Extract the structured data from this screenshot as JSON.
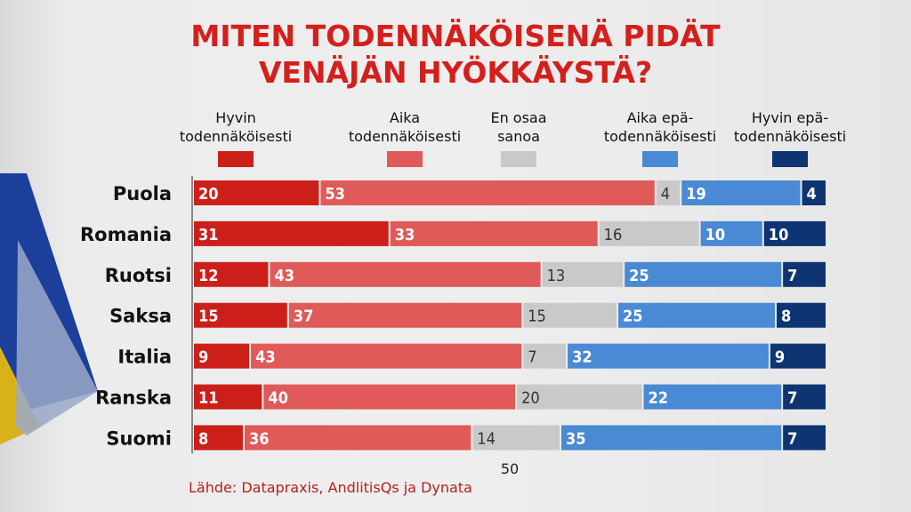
{
  "chart_data": {
    "type": "bar",
    "stacked": true,
    "orientation": "horizontal",
    "title": "MITEN TODENNÄKÖISENÄ PIDÄT VENÄJÄN HYÖKKÄYSTÄ?",
    "title_lines": [
      "MITEN TODENNÄKÖISENÄ PIDÄT",
      "VENÄJÄN HYÖKKÄYSTÄ?"
    ],
    "categories": [
      "Puola",
      "Romania",
      "Ruotsi",
      "Saksa",
      "Italia",
      "Ranska",
      "Suomi"
    ],
    "series": [
      {
        "name": "Hyvin todennäköisesti",
        "label_lines": [
          "Hyvin",
          "todennäköisesti"
        ],
        "color": "#cc1f1a",
        "label_color": "#ffffff",
        "values": [
          20,
          31,
          12,
          15,
          9,
          11,
          8
        ]
      },
      {
        "name": "Aika todennäköisesti",
        "label_lines": [
          "Aika",
          "todennäköisesti"
        ],
        "color": "#e05a5a",
        "label_color": "#ffffff",
        "values": [
          53,
          33,
          43,
          37,
          43,
          40,
          36
        ]
      },
      {
        "name": "En osaa sanoa",
        "label_lines": [
          "En osaa",
          "sanoa"
        ],
        "color": "#c9c9c9",
        "label_color": "#333333",
        "values": [
          4,
          16,
          13,
          15,
          7,
          20,
          14
        ]
      },
      {
        "name": "Aika epä-todennäköisesti",
        "label_lines": [
          "Aika epä-",
          "todennäköisesti"
        ],
        "color": "#4a89d4",
        "label_color": "#ffffff",
        "values": [
          19,
          10,
          25,
          25,
          32,
          22,
          35
        ]
      },
      {
        "name": "Hyvin epä-todennäköisesti",
        "label_lines": [
          "Hyvin epä-",
          "todennäköisesti"
        ],
        "color": "#0e3472",
        "label_color": "#ffffff",
        "values": [
          4,
          10,
          7,
          8,
          9,
          7,
          7
        ]
      }
    ],
    "xlim": [
      0,
      100
    ],
    "x_ticks": [
      "50"
    ],
    "legend_position": "top",
    "grid": false
  },
  "source": "Lähde: Datapraxis, AndlitisQs ja Dynata"
}
